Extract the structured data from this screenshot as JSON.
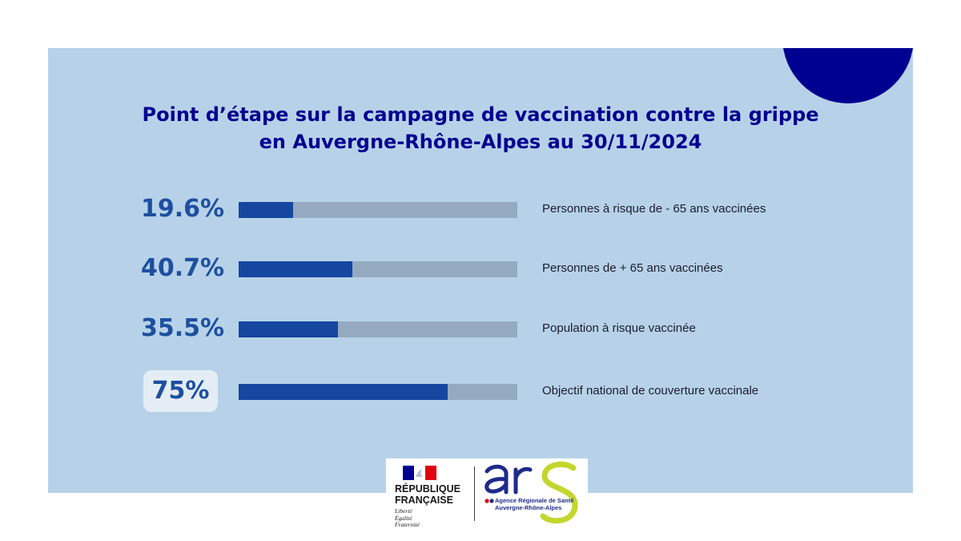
{
  "title_lines": [
    "Point d’étape sur la campagne de vaccination contre la grippe",
    "en Auvergne-Rhône-Alpes au 30/11/2024"
  ],
  "rows": [
    {
      "value_label": "19.6%",
      "label": "Personnes à risque de - 65 ans vaccinées"
    },
    {
      "value_label": "40.7%",
      "label": "Personnes de + 65 ans vaccinées"
    },
    {
      "value_label": "35.5%",
      "label": "Population à risque vaccinée"
    },
    {
      "value_label": "75%",
      "label": "Objectif national de couverture vaccinale"
    }
  ],
  "chart_data": {
    "type": "bar",
    "orientation": "horizontal",
    "title": "Point d’étape sur la campagne de vaccination contre la grippe en Auvergne-Rhône-Alpes au 30/11/2024",
    "categories": [
      "Personnes à risque de - 65 ans vaccinées",
      "Personnes de + 65 ans vaccinées",
      "Population à risque vaccinée",
      "Objectif national de couverture vaccinale"
    ],
    "values": [
      19.6,
      40.7,
      35.5,
      75
    ],
    "value_labels": [
      "19.6%",
      "40.7%",
      "35.5%",
      "75%"
    ],
    "xlim": [
      0,
      100
    ],
    "unit": "%",
    "grid": false,
    "legend": "none",
    "highlighted_category": "Objectif national de couverture vaccinale"
  },
  "logos": {
    "rf_name_lines": [
      "RÉPUBLIQUE",
      "FRANÇAISE"
    ],
    "rf_motto_lines": [
      "Liberté",
      "Égalité",
      "Fraternité"
    ],
    "ars_wordmark": "ars",
    "ars_subtitle_lines": [
      "Agence Régionale de Santé",
      "Auvergne-Rhône-Alpes"
    ]
  },
  "colors": {
    "background_panel": "#b7d2e8",
    "title": "#000091",
    "bar_fill": "#1547a0",
    "bar_track": "#95aac0",
    "accent_circle": "#000091",
    "value_text": "#1e4fa0",
    "ars_green": "#c3d62d",
    "ars_blue": "#1e2a8a"
  }
}
